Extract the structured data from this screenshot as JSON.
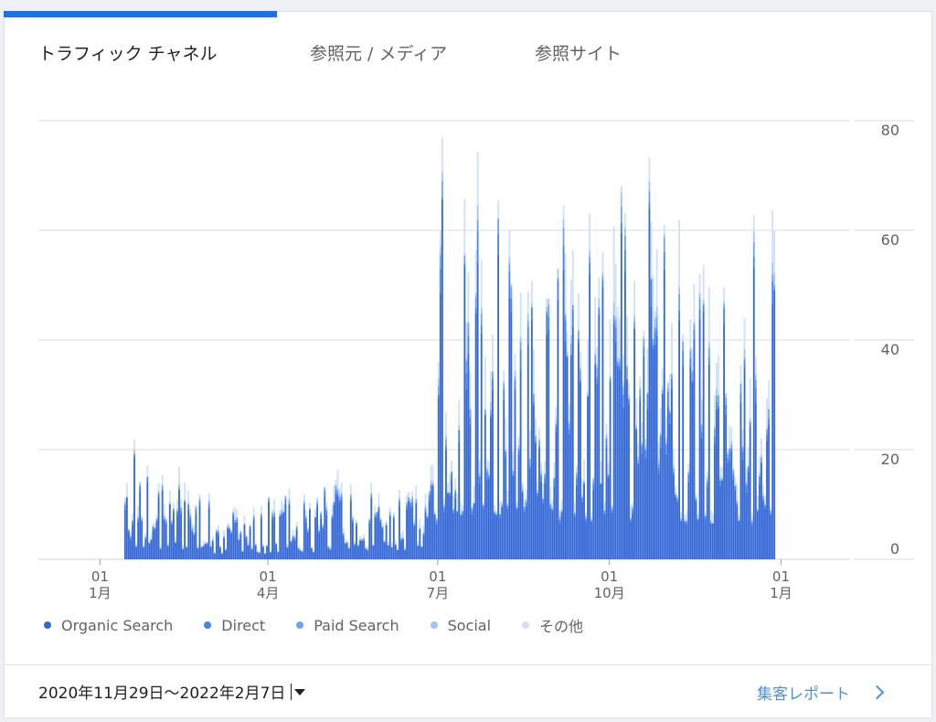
{
  "tabs": [
    {
      "label": "トラフィック チャネル",
      "active": true
    },
    {
      "label": "参照元 / メディア",
      "active": false
    },
    {
      "label": "参照サイト",
      "active": false
    }
  ],
  "legend": [
    {
      "label": "Organic Search",
      "color": "#3367d6"
    },
    {
      "label": "Direct",
      "color": "#4285f4"
    },
    {
      "label": "Paid Search",
      "color": "#6fa3f3"
    },
    {
      "label": "Social",
      "color": "#a3c4f7"
    },
    {
      "label": "その他",
      "color": "#cfe0fb"
    }
  ],
  "footer": {
    "date_range": "2020年11月29日〜2022年2月7日",
    "report_link": "集客レポート"
  },
  "chart_data": {
    "type": "bar",
    "stacked": true,
    "y_ticks": [
      "80",
      "60",
      "40",
      "20",
      "0"
    ],
    "ylim": [
      0,
      80
    ],
    "x_ticks": [
      {
        "day": "01",
        "month": "1月",
        "date": "2021-01-01"
      },
      {
        "day": "01",
        "month": "4月",
        "date": "2021-04-01"
      },
      {
        "day": "01",
        "month": "7月",
        "date": "2021-07-01"
      },
      {
        "day": "01",
        "month": "10月",
        "date": "2021-10-01"
      },
      {
        "day": "01",
        "month": "1月",
        "date": "2022-01-01"
      }
    ],
    "x_start": "2020-11-29",
    "x_end": "2022-02-07",
    "data_start": "2021-01-14",
    "data_end": "2021-12-28",
    "monthly_peaks": [
      {
        "month": "2021-01",
        "max_total": 23
      },
      {
        "month": "2021-02",
        "max_total": 20
      },
      {
        "month": "2021-03",
        "max_total": 10
      },
      {
        "month": "2021-04",
        "max_total": 13
      },
      {
        "month": "2021-05",
        "max_total": 19
      },
      {
        "month": "2021-06",
        "max_total": 18
      },
      {
        "month": "2021-07",
        "max_total": 78
      },
      {
        "month": "2021-08",
        "max_total": 68
      },
      {
        "month": "2021-09",
        "max_total": 70
      },
      {
        "month": "2021-10",
        "max_total": 75
      },
      {
        "month": "2021-11",
        "max_total": 62
      },
      {
        "month": "2021-12",
        "max_total": 66
      }
    ]
  }
}
